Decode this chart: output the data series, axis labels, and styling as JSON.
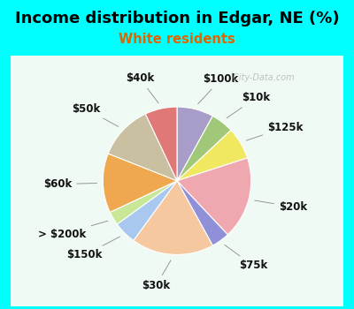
{
  "title": "Income distribution in Edgar, NE (%)",
  "subtitle": "White residents",
  "title_color": "#000000",
  "subtitle_color": "#dd6600",
  "background_color": "#00ffff",
  "chart_bg": "#f0faf4",
  "watermark": " City-Data.com",
  "slices": [
    {
      "label": "$100k",
      "value": 8,
      "color": "#a89cc8"
    },
    {
      "label": "$10k",
      "value": 5,
      "color": "#a0c878"
    },
    {
      "label": "$125k",
      "value": 7,
      "color": "#f0e860"
    },
    {
      "label": "$20k",
      "value": 18,
      "color": "#f0a8b0"
    },
    {
      "label": "$75k",
      "value": 4,
      "color": "#9090d8"
    },
    {
      "label": "$30k",
      "value": 18,
      "color": "#f5c8a0"
    },
    {
      "label": "$150k",
      "value": 5,
      "color": "#a8c8f0"
    },
    {
      "label": "> $200k",
      "value": 3,
      "color": "#c8e898"
    },
    {
      "label": "$60k",
      "value": 13,
      "color": "#f0a850"
    },
    {
      "label": "$50k",
      "value": 12,
      "color": "#c8c0a0"
    },
    {
      "label": "$40k",
      "value": 7,
      "color": "#e07878"
    }
  ],
  "label_fontsize": 8.5,
  "title_fontsize": 13,
  "subtitle_fontsize": 10.5,
  "startangle": 90,
  "figsize": [
    4.0,
    3.5
  ],
  "dpi": 100
}
